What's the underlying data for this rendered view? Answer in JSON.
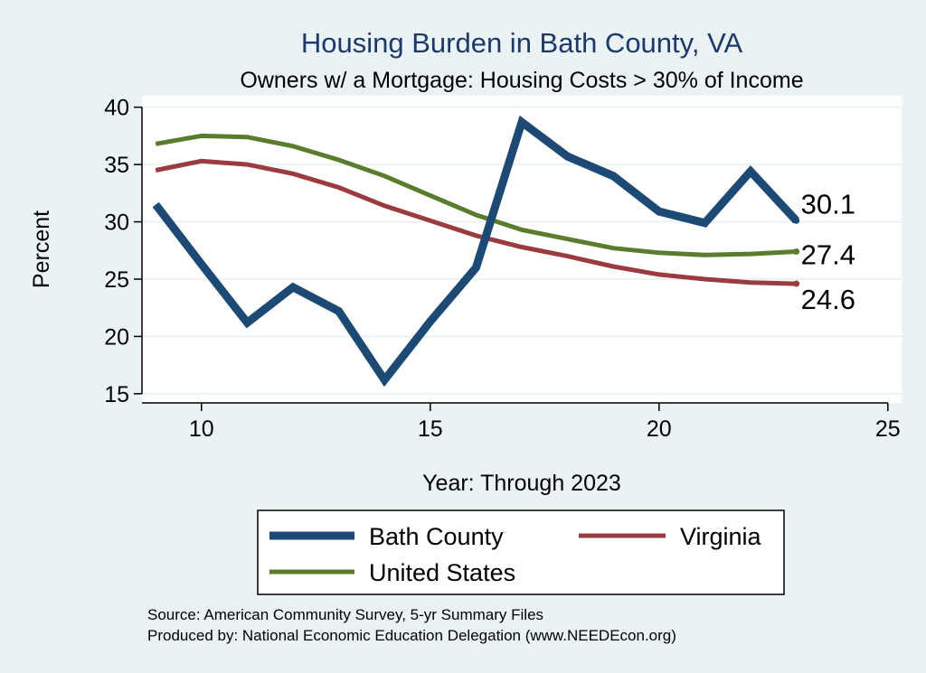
{
  "chart_data": {
    "type": "line",
    "title": "Housing Burden in Bath County, VA",
    "subtitle": "Owners w/ a Mortgage: Housing Costs > 30% of Income",
    "xlabel": "Year: Through 2023",
    "ylabel": "Percent",
    "xlim": [
      8.7,
      25.3
    ],
    "ylim": [
      14.2,
      41.0
    ],
    "xticks": [
      10,
      15,
      20,
      25
    ],
    "yticks": [
      15,
      20,
      25,
      30,
      35,
      40
    ],
    "grid": true,
    "x": [
      9,
      10,
      11,
      12,
      13,
      14,
      15,
      16,
      17,
      18,
      19,
      20,
      21,
      22,
      23
    ],
    "series": [
      {
        "name": "Bath County",
        "color": "#1c4a74",
        "values": [
          31.5,
          26.3,
          21.2,
          24.3,
          22.2,
          16.2,
          21.3,
          26.0,
          38.7,
          35.7,
          34.0,
          30.9,
          29.9,
          34.4,
          30.1
        ],
        "end_label": "30.1"
      },
      {
        "name": "Virginia",
        "color": "#9b3b3f",
        "values": [
          34.5,
          35.3,
          35.0,
          34.2,
          33.0,
          31.4,
          30.1,
          28.8,
          27.8,
          27.0,
          26.1,
          25.4,
          25.0,
          24.7,
          24.6
        ],
        "end_label": "24.6"
      },
      {
        "name": "United States",
        "color": "#5a7d2d",
        "values": [
          36.8,
          37.5,
          37.4,
          36.6,
          35.4,
          34.0,
          32.3,
          30.6,
          29.3,
          28.5,
          27.7,
          27.3,
          27.1,
          27.2,
          27.4
        ],
        "end_label": "27.4"
      }
    ],
    "legend_position": "bottom"
  },
  "notes": {
    "source": "Source: American Community Survey, 5-yr Summary Files",
    "produced_by": "Produced by: National Economic Education Delegation (www.NEEDEcon.org)"
  }
}
